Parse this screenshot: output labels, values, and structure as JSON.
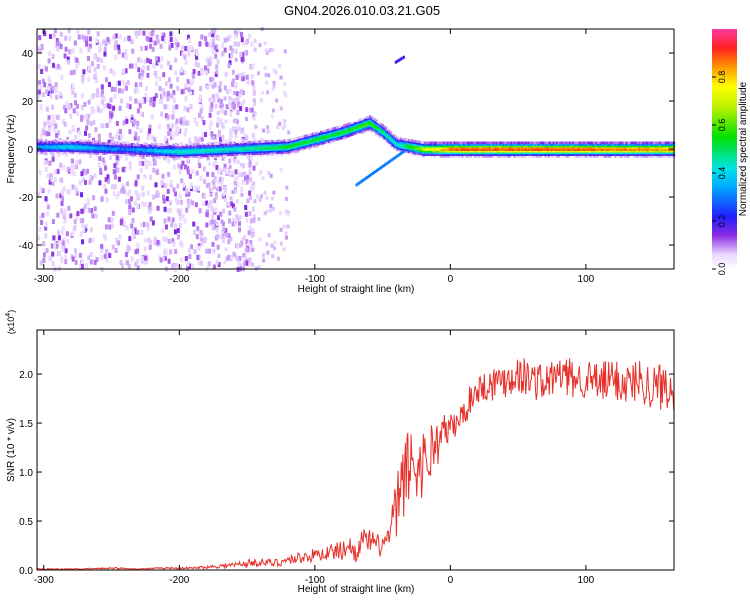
{
  "title": "GN04.2026.010.03.21.G05",
  "chart_data": [
    {
      "type": "heatmap",
      "xlabel": "Height of straight line (km)",
      "ylabel": "Frequency (Hz)",
      "xlim": [
        -305,
        165
      ],
      "ylim": [
        -50,
        50
      ],
      "xticks": [
        -300,
        -200,
        -100,
        0,
        100
      ],
      "yticks": [
        -40,
        -20,
        0,
        20,
        40
      ],
      "colorbar": {
        "label": "Normalized spectral amplitude",
        "range": [
          0,
          1
        ],
        "ticks": [
          0.0,
          0.2,
          0.4,
          0.6,
          0.8
        ]
      },
      "ridge": {
        "description_points": [
          {
            "x": -305,
            "freq": 1,
            "amp": 0.35
          },
          {
            "x": -280,
            "freq": 1,
            "amp": 0.4
          },
          {
            "x": -240,
            "freq": 0,
            "amp": 0.3
          },
          {
            "x": -200,
            "freq": -1,
            "amp": 0.45
          },
          {
            "x": -160,
            "freq": 0,
            "amp": 0.45
          },
          {
            "x": -120,
            "freq": 1,
            "amp": 0.55
          },
          {
            "x": -100,
            "freq": 4,
            "amp": 0.55
          },
          {
            "x": -80,
            "freq": 7,
            "amp": 0.55
          },
          {
            "x": -60,
            "freq": 11,
            "amp": 0.6
          },
          {
            "x": -50,
            "freq": 7,
            "amp": 0.5
          },
          {
            "x": -40,
            "freq": 2,
            "amp": 0.45
          },
          {
            "x": -20,
            "freq": 0,
            "amp": 0.7
          },
          {
            "x": 0,
            "freq": 0,
            "amp": 0.9
          },
          {
            "x": 50,
            "freq": 0,
            "amp": 0.92
          },
          {
            "x": 100,
            "freq": 0,
            "amp": 0.9
          },
          {
            "x": 165,
            "freq": 0,
            "amp": 0.85
          }
        ]
      }
    },
    {
      "type": "line",
      "xlabel": "Height of straight line (km)",
      "ylabel": "SNR (10 * v/v)",
      "yscale_label": "(x10",
      "yscale_exp": "4",
      "xlim": [
        -305,
        165
      ],
      "ylim": [
        0,
        2.45
      ],
      "xticks": [
        -300,
        -200,
        -100,
        0,
        100
      ],
      "yticks": [
        0.0,
        0.5,
        1.0,
        1.5,
        2.0
      ],
      "color": "#e8302a",
      "series": [
        {
          "x": [
            -305,
            -290,
            -270,
            -250,
            -230,
            -210,
            -190,
            -180,
            -170,
            -160,
            -150,
            -140,
            -130,
            -120,
            -110,
            -100,
            -90,
            -80,
            -75,
            -70,
            -65,
            -60,
            -55,
            -50,
            -45,
            -40,
            -35,
            -30,
            -25,
            -20,
            -15,
            -10,
            -5,
            0,
            5,
            10,
            15,
            20,
            30,
            40,
            50,
            60,
            70,
            80,
            90,
            100,
            110,
            120,
            130,
            140,
            150,
            160,
            165
          ],
          "y": [
            0.01,
            0.01,
            0.01,
            0.02,
            0.01,
            0.02,
            0.02,
            0.03,
            0.04,
            0.05,
            0.07,
            0.08,
            0.07,
            0.1,
            0.13,
            0.15,
            0.18,
            0.2,
            0.25,
            0.18,
            0.3,
            0.3,
            0.25,
            0.25,
            0.35,
            0.6,
            0.9,
            1.1,
            1.05,
            1.1,
            1.2,
            1.3,
            1.4,
            1.45,
            1.5,
            1.6,
            1.75,
            1.85,
            1.9,
            1.95,
            2.0,
            1.95,
            1.9,
            2.0,
            1.95,
            1.95,
            1.9,
            1.95,
            1.9,
            1.95,
            1.85,
            1.9,
            1.85
          ],
          "noise": [
            0.005,
            0.005,
            0.005,
            0.01,
            0.005,
            0.01,
            0.01,
            0.015,
            0.02,
            0.03,
            0.04,
            0.04,
            0.04,
            0.05,
            0.06,
            0.07,
            0.08,
            0.1,
            0.1,
            0.1,
            0.12,
            0.12,
            0.12,
            0.12,
            0.15,
            0.35,
            0.4,
            0.4,
            0.4,
            0.35,
            0.35,
            0.25,
            0.2,
            0.15,
            0.15,
            0.15,
            0.15,
            0.15,
            0.18,
            0.2,
            0.2,
            0.2,
            0.2,
            0.2,
            0.2,
            0.2,
            0.22,
            0.22,
            0.22,
            0.22,
            0.25,
            0.25,
            0.25
          ]
        }
      ]
    }
  ]
}
